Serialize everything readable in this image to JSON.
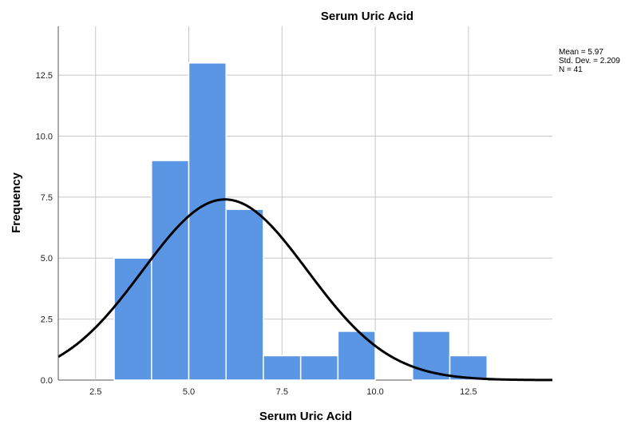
{
  "chart_data": {
    "type": "bar",
    "title": "Serum Uric Acid",
    "xlabel": "Serum Uric Acid",
    "ylabel": "Frequency",
    "xlim": [
      1.5,
      14.75
    ],
    "ylim": [
      0,
      14.5
    ],
    "xticks": [
      2.5,
      5.0,
      7.5,
      10.0,
      12.5
    ],
    "xtick_labels": [
      "2.5",
      "5.0",
      "7.5",
      "10.0",
      "12.5"
    ],
    "yticks": [
      0.0,
      2.5,
      5.0,
      7.5,
      10.0,
      12.5
    ],
    "ytick_labels": [
      "0.0",
      "2.5",
      "5.0",
      "7.5",
      "10.0",
      "12.5"
    ],
    "grid": true,
    "bins": [
      {
        "start": 3.0,
        "end": 4.0,
        "value": 5
      },
      {
        "start": 4.0,
        "end": 5.0,
        "value": 9
      },
      {
        "start": 5.0,
        "end": 6.0,
        "value": 13
      },
      {
        "start": 6.0,
        "end": 7.0,
        "value": 7
      },
      {
        "start": 7.0,
        "end": 8.0,
        "value": 1
      },
      {
        "start": 8.0,
        "end": 9.0,
        "value": 1
      },
      {
        "start": 9.0,
        "end": 10.0,
        "value": 2
      },
      {
        "start": 10.0,
        "end": 11.0,
        "value": 0
      },
      {
        "start": 11.0,
        "end": 12.0,
        "value": 2
      },
      {
        "start": 12.0,
        "end": 13.0,
        "value": 1
      }
    ],
    "normal_curve": {
      "mean": 5.97,
      "sd": 2.209,
      "n": 41,
      "bin_width": 1.0
    },
    "stats": [
      "Mean = 5.97",
      "Std. Dev. = 2.209",
      "N = 41"
    ],
    "colors": {
      "bar": "#5b96e4",
      "bar_edge": "#ffffff",
      "curve": "#000000",
      "grid": "#c8c8c8",
      "axis": "#555555"
    }
  }
}
